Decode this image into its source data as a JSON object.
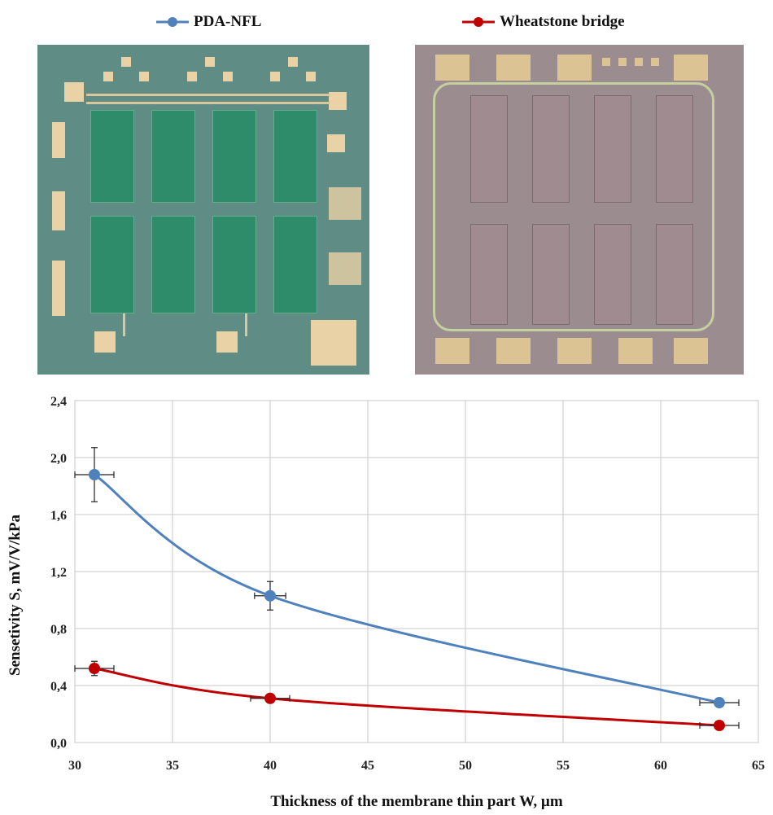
{
  "legend": {
    "series_a": "PDA-NFL",
    "series_b": "Wheatstone bridge"
  },
  "colors": {
    "pda_nfl": "#4f81bd",
    "wheatstone": "#c00000"
  },
  "chart_data": {
    "type": "line",
    "xlabel": "Thickness of the membrane thin part  W, µm",
    "ylabel": "Sensetivity S, mV/V/kPa",
    "xlim": [
      30,
      65
    ],
    "ylim": [
      0,
      2.4
    ],
    "x_ticks": [
      "30",
      "35",
      "40",
      "45",
      "50",
      "55",
      "60",
      "65"
    ],
    "y_ticks": [
      "0,0",
      "0,4",
      "0,8",
      "1,2",
      "1,6",
      "2,0",
      "2,4"
    ],
    "grid": true,
    "legend_position": "top",
    "series": [
      {
        "name": "PDA-NFL",
        "x": [
          31,
          40,
          63
        ],
        "y": [
          1.88,
          1.03,
          0.28
        ],
        "y_err": [
          0.19,
          0.1,
          0.03
        ],
        "x_err": [
          1,
          0.8,
          1
        ]
      },
      {
        "name": "Wheatstone bridge",
        "x": [
          31,
          40,
          63
        ],
        "y": [
          0.52,
          0.31,
          0.12
        ],
        "y_err": [
          0.05,
          0.02,
          0.02
        ],
        "x_err": [
          1,
          1,
          1
        ]
      }
    ]
  }
}
